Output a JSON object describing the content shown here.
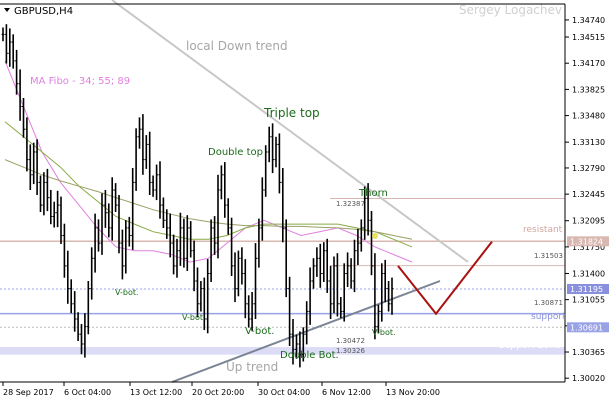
{
  "window": {
    "symbol_title": "GBPUSD,H4",
    "author": "Sergey Logachev"
  },
  "colors": {
    "background": "#ffffff",
    "bar": "#000000",
    "ma_fast": "#e080e0",
    "ma_mid": "#88aa44",
    "ma_slow": "#9aa066",
    "down_trend": "#c8c8c8",
    "up_trend": "#7a8494",
    "zone": "#dcdcf6",
    "resistant": "#d8b8b0",
    "support": "#9aa2e6",
    "forecast": "#aa1111",
    "annotation_green": "#1a6a1a",
    "annotation_gray": "#a6a6a6"
  },
  "chart_data": {
    "type": "line",
    "symbol": "GBPUSD",
    "timeframe": "H4",
    "x_tick_labels": [
      "28 Sep 2017",
      "6 Oct 04:00",
      "13 Oct 12:00",
      "20 Oct 20:00",
      "30 Oct 04:00",
      "6 Nov 12:00",
      "13 Nov 20:00"
    ],
    "ylim": [
      1.2997,
      1.3495
    ],
    "y_ticks": [
      1.3002,
      1.30365,
      1.3071,
      1.31055,
      1.314,
      1.3175,
      1.32095,
      1.32445,
      1.3279,
      1.3313,
      1.3348,
      1.33825,
      1.3417,
      1.34515,
      1.3474
    ],
    "y_tick_labels": [
      "1.30020",
      "1.30365",
      "1.30710",
      "1.31055",
      "1.31400",
      "1.31750",
      "1.32095",
      "1.32445",
      "1.32790",
      "1.33130",
      "1.33480",
      "1.33825",
      "1.34170",
      "1.34515",
      "1.34740"
    ],
    "price_labels": [
      {
        "label": "1.31824",
        "value": 1.31824
      },
      {
        "label": "1.31195",
        "value": 1.31195
      },
      {
        "label": "1.30691",
        "value": 1.30691
      }
    ],
    "level_values": [
      {
        "label": "1.32387",
        "value": 1.32387
      },
      {
        "label": "1.31503",
        "value": 1.31503
      },
      {
        "label": "1.30871",
        "value": 1.30871
      },
      {
        "label": "1.30472",
        "value": 1.30472
      },
      {
        "label": "1.30326",
        "value": 1.30326
      }
    ],
    "indicator_label": "MA Fibo - 34; 55; 89",
    "price_series": [
      1.3455,
      1.343,
      1.3445,
      1.342,
      1.339,
      1.336,
      1.333,
      1.329,
      1.327,
      1.33,
      1.326,
      1.323,
      1.326,
      1.324,
      1.3215,
      1.322,
      1.323,
      1.319,
      1.315,
      1.312,
      1.31,
      1.308,
      1.306,
      1.3047,
      1.307,
      1.312,
      1.316,
      1.32,
      1.318,
      1.323,
      1.322,
      1.32,
      1.325,
      1.323,
      1.318,
      1.315,
      1.32,
      1.319,
      1.326,
      1.332,
      1.333,
      1.329,
      1.331,
      1.326,
      1.325,
      1.327,
      1.323,
      1.321,
      1.32,
      1.318,
      1.315,
      1.317,
      1.32,
      1.316,
      1.32,
      1.317,
      1.313,
      1.31,
      1.312,
      1.308,
      1.314,
      1.32,
      1.318,
      1.325,
      1.327,
      1.323,
      1.32,
      1.315,
      1.312,
      1.316,
      1.314,
      1.31,
      1.308,
      1.31,
      1.316,
      1.32,
      1.325,
      1.33,
      1.332,
      1.329,
      1.331,
      1.326,
      1.32,
      1.312,
      1.306,
      1.304,
      1.3047,
      1.3033,
      1.306,
      1.309,
      1.313,
      1.315,
      1.316,
      1.314,
      1.317,
      1.313,
      1.31,
      1.315,
      1.31,
      1.309,
      1.314,
      1.315,
      1.313,
      1.317,
      1.318,
      1.32,
      1.3239,
      1.321,
      1.315,
      1.307,
      1.309,
      1.314,
      1.312,
      1.31,
      1.312
    ],
    "series": [
      {
        "values": [
          1.342,
          1.336,
          1.33,
          1.326,
          1.323,
          1.32,
          1.3175,
          1.317,
          1.317,
          1.3165,
          1.3155,
          1.316,
          1.318,
          1.32,
          1.321,
          1.32,
          1.319,
          1.3195,
          1.32,
          1.319,
          1.3175,
          1.3165,
          1.3155
        ]
      },
      {
        "values": [
          1.334,
          1.332,
          1.33,
          1.328,
          1.3255,
          1.3235,
          1.3215,
          1.3205,
          1.3195,
          1.319,
          1.3185,
          1.3185,
          1.319,
          1.32,
          1.3205,
          1.3205,
          1.3205,
          1.3205,
          1.3205,
          1.32,
          1.3195,
          1.3185,
          1.3175
        ]
      },
      {
        "values": [
          1.329,
          1.328,
          1.327,
          1.3262,
          1.3255,
          1.3248,
          1.324,
          1.3232,
          1.3224,
          1.3218,
          1.3212,
          1.3208,
          1.3205,
          1.3203,
          1.3203,
          1.3202,
          1.3202,
          1.3201,
          1.32,
          1.3198,
          1.3195,
          1.319,
          1.3185
        ]
      }
    ],
    "forecast": [
      1.315,
      1.3087,
      1.3182
    ],
    "trend_lines": [
      {
        "label": "local Down trend",
        "from": [
          1.3505,
          "start"
        ],
        "to": [
          1.314,
          "end"
        ]
      },
      {
        "label": "Up trend",
        "from": [
          1.2997,
          "mid"
        ],
        "to": [
          1.3118,
          "end"
        ]
      }
    ],
    "horizontal_levels": [
      {
        "label": "",
        "value": 1.32387
      },
      {
        "label": "resistant",
        "value": 1.31824
      },
      {
        "label": "",
        "value": 1.31503
      },
      {
        "label": "",
        "value": 1.31195
      },
      {
        "label": "support",
        "value": 1.30871
      },
      {
        "label": "",
        "value": 1.30691
      },
      {
        "label": "Support Zone",
        "value": 1.304
      }
    ],
    "annotations": [
      "Triple top",
      "Double top",
      "Thorn",
      "V-bot.",
      "V-bot",
      "V-bot.",
      "V-bot.",
      "Double Bot."
    ],
    "grid": false
  }
}
